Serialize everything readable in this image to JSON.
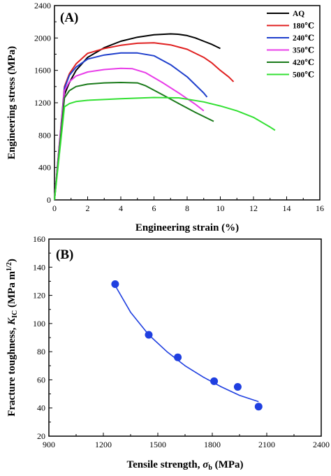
{
  "chart_data": [
    {
      "panel_label": "(A)",
      "type": "line",
      "xlabel": "Engineering strain (%)",
      "ylabel": "Engineering stress (MPa)",
      "xlim": [
        0,
        16
      ],
      "ylim": [
        0,
        2400
      ],
      "xticks": [
        "0",
        "2",
        "4",
        "6",
        "8",
        "10",
        "12",
        "14",
        "16"
      ],
      "yticks": [
        "0",
        "400",
        "800",
        "1200",
        "1600",
        "2000",
        "2400"
      ],
      "legend_position": "top-right",
      "series": [
        {
          "name": "AQ",
          "color": "#000000",
          "x": [
            0,
            0.6,
            0.9,
            1.3,
            2,
            3,
            4,
            5,
            6,
            7,
            7.5,
            8,
            8.5,
            9,
            9.5,
            10
          ],
          "y": [
            0,
            1300,
            1450,
            1600,
            1760,
            1880,
            1960,
            2010,
            2040,
            2050,
            2045,
            2030,
            2000,
            1960,
            1920,
            1870
          ]
        },
        {
          "name": "180℃",
          "color": "#e02020",
          "x": [
            0,
            0.6,
            0.9,
            1.3,
            2,
            3,
            4,
            5,
            6,
            7,
            8,
            9,
            9.5,
            10,
            10.5,
            10.8
          ],
          "y": [
            0,
            1400,
            1560,
            1680,
            1810,
            1870,
            1910,
            1935,
            1940,
            1915,
            1860,
            1760,
            1690,
            1600,
            1520,
            1460
          ]
        },
        {
          "name": "240℃",
          "color": "#1f3fcc",
          "x": [
            0,
            0.6,
            0.9,
            1.3,
            2,
            3,
            4,
            5,
            6,
            7,
            8,
            8.5,
            9,
            9.2
          ],
          "y": [
            0,
            1380,
            1540,
            1640,
            1740,
            1790,
            1815,
            1815,
            1780,
            1670,
            1520,
            1420,
            1320,
            1270
          ]
        },
        {
          "name": "350℃",
          "color": "#e83ce8",
          "x": [
            0,
            0.6,
            0.9,
            1.3,
            2,
            3,
            4,
            4.7,
            5.5,
            6.5,
            7.5,
            8.5,
            9
          ],
          "y": [
            0,
            1350,
            1460,
            1530,
            1580,
            1610,
            1625,
            1620,
            1570,
            1450,
            1320,
            1180,
            1100
          ]
        },
        {
          "name": "420℃",
          "color": "#1a7a1a",
          "x": [
            0,
            0.6,
            0.9,
            1.3,
            2,
            3,
            4,
            5,
            5.5,
            6.5,
            7.5,
            8.5,
            9.6
          ],
          "y": [
            0,
            1260,
            1350,
            1400,
            1430,
            1445,
            1450,
            1445,
            1410,
            1300,
            1190,
            1080,
            970
          ]
        },
        {
          "name": "500℃",
          "color": "#33e033",
          "x": [
            0,
            0.6,
            0.9,
            1.3,
            2,
            4,
            6,
            7.5,
            9,
            10,
            11,
            12,
            13,
            13.3
          ],
          "y": [
            0,
            1150,
            1190,
            1215,
            1230,
            1250,
            1265,
            1260,
            1210,
            1160,
            1100,
            1020,
            900,
            860
          ]
        }
      ]
    },
    {
      "panel_label": "(B)",
      "type": "scatter",
      "xlabel_parts": {
        "main": "Tensile strength, ",
        "symbol": "σ",
        "sub": "b",
        "unit": " (MPa)"
      },
      "ylabel_parts": {
        "main": "Fracture toughness, ",
        "symbol": "K",
        "sub": "IC",
        "unit": " (MPa m",
        "sup": "1/2",
        "close": ")"
      },
      "xlim": [
        900,
        2400
      ],
      "ylim": [
        20,
        160
      ],
      "xticks": [
        "900",
        "1200",
        "1500",
        "1800",
        "2100",
        "2400"
      ],
      "yticks": [
        "20",
        "40",
        "60",
        "80",
        "100",
        "120",
        "140",
        "160"
      ],
      "point_color": "#1f3fe0",
      "points": [
        {
          "x": 1265,
          "y": 128
        },
        {
          "x": 1450,
          "y": 92
        },
        {
          "x": 1610,
          "y": 76
        },
        {
          "x": 1810,
          "y": 59
        },
        {
          "x": 1940,
          "y": 55
        },
        {
          "x": 2055,
          "y": 41
        }
      ],
      "fit_curve": {
        "color": "#1f3fe0",
        "x": [
          1265,
          1350,
          1450,
          1550,
          1650,
          1750,
          1850,
          1950,
          2055
        ],
        "y": [
          127,
          108,
          92,
          80,
          70,
          62,
          55,
          49,
          44.5
        ]
      }
    }
  ]
}
